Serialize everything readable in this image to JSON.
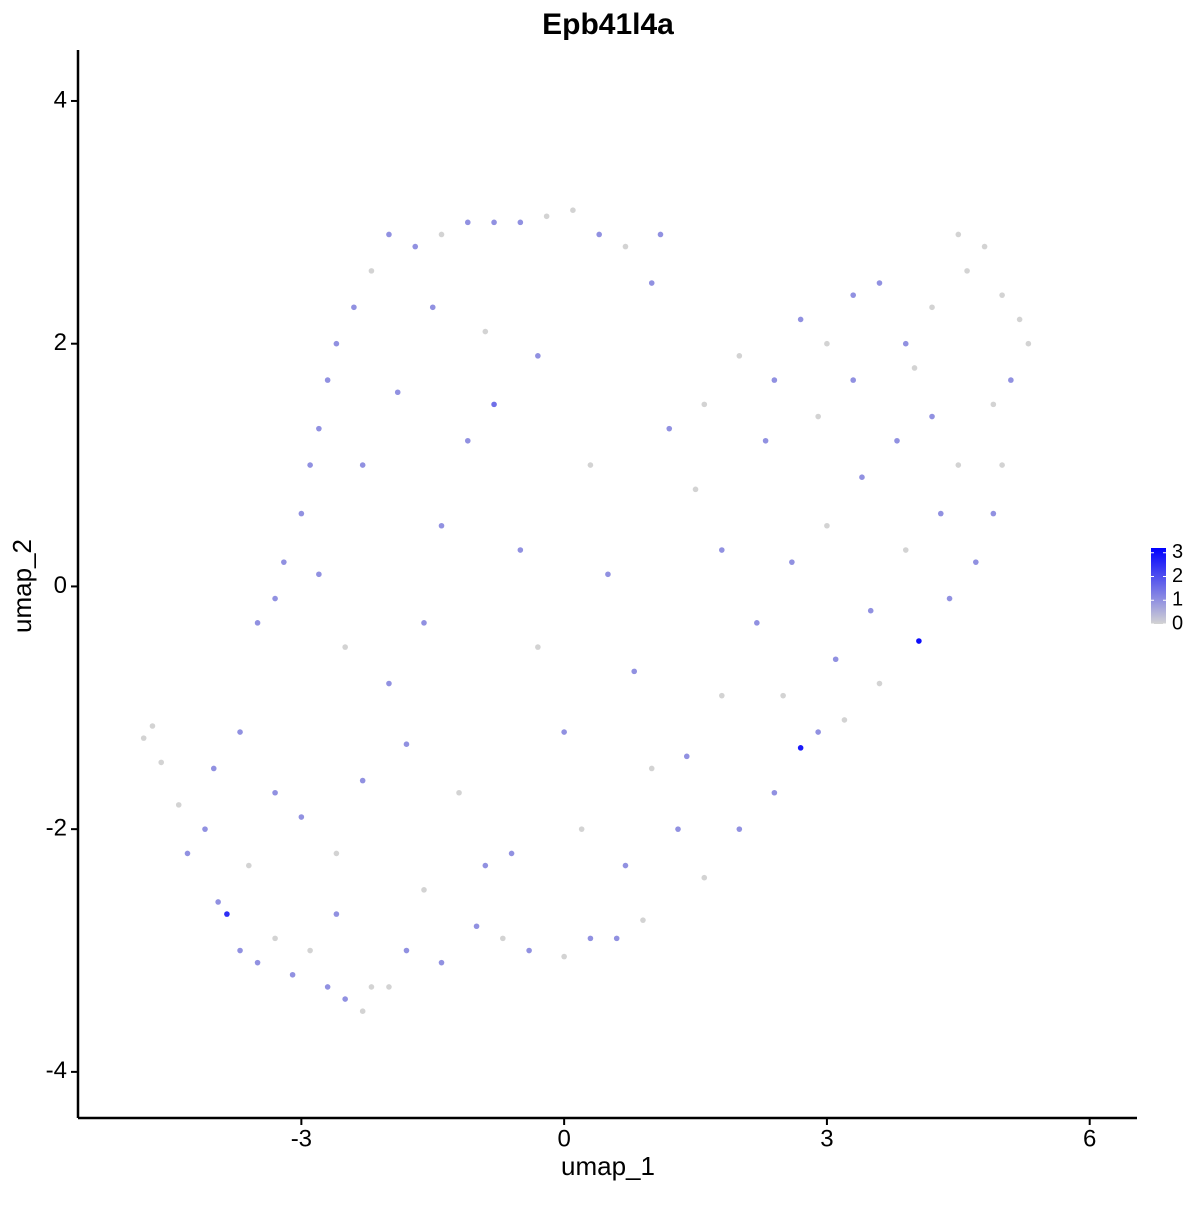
{
  "chart_data": {
    "type": "scatter",
    "title": "Epb41l4a",
    "xlabel": "umap_1",
    "ylabel": "umap_2",
    "x": [
      -4.8,
      -4.7,
      -4.6,
      -4.4,
      -4.3,
      -4.1,
      -3.95,
      -3.85,
      -3.7,
      -3.5,
      -3.3,
      -3.1,
      -2.9,
      -2.7,
      -2.5,
      -2.3,
      -2.2,
      -2.0,
      -1.8,
      -1.4,
      -1.0,
      -0.7,
      -0.4,
      0.0,
      0.3,
      0.6,
      0.9,
      -4.0,
      -3.7,
      -3.5,
      -3.3,
      -3.2,
      -3.0,
      -2.9,
      -2.8,
      -2.7,
      -2.6,
      -2.4,
      -2.2,
      -2.0,
      -1.7,
      -1.4,
      -1.1,
      -0.8,
      -0.5,
      -0.2,
      0.1,
      0.4,
      0.7,
      1.1,
      1.0,
      -3.0,
      -2.6,
      -2.3,
      -2.0,
      -1.6,
      -1.4,
      -1.1,
      -0.8,
      -0.5,
      -0.3,
      0.0,
      0.2,
      -0.6,
      -1.2,
      -1.8,
      -2.5,
      -2.8,
      -2.3,
      -1.9,
      -1.5,
      -0.9,
      -0.3,
      0.3,
      0.5,
      0.8,
      1.0,
      0.7,
      1.3,
      -3.6,
      -3.3,
      -2.6,
      -1.6,
      -0.9,
      1.2,
      1.6,
      2.0,
      2.4,
      2.7,
      3.0,
      3.3,
      3.6,
      3.9,
      4.2,
      4.5,
      4.6,
      4.8,
      5.0,
      5.2,
      5.3,
      5.1,
      4.9,
      5.0,
      4.9,
      4.7,
      4.4,
      4.05,
      3.6,
      3.2,
      2.9,
      2.7,
      2.4,
      2.0,
      1.6,
      1.4,
      1.8,
      2.2,
      2.6,
      3.0,
      3.4,
      3.8,
      4.2,
      4.5,
      4.3,
      3.9,
      3.5,
      3.1,
      2.5,
      1.8,
      1.5,
      2.3,
      2.9,
      3.3,
      4.0
    ],
    "y": [
      -1.25,
      -1.15,
      -1.45,
      -1.8,
      -2.2,
      -2.0,
      -2.6,
      -2.7,
      -3.0,
      -3.1,
      -2.9,
      -3.2,
      -3.0,
      -3.3,
      -3.4,
      -3.5,
      -3.3,
      -3.3,
      -3.0,
      -3.1,
      -2.8,
      -2.9,
      -3.0,
      -3.05,
      -2.9,
      -2.9,
      -2.75,
      -1.5,
      -1.2,
      -0.3,
      -0.1,
      0.2,
      0.6,
      1.0,
      1.3,
      1.7,
      2.0,
      2.3,
      2.6,
      2.9,
      2.8,
      2.9,
      3.0,
      3.0,
      3.0,
      3.05,
      3.1,
      2.9,
      2.8,
      2.9,
      2.5,
      -1.9,
      -2.2,
      -1.6,
      -0.8,
      -0.3,
      0.5,
      1.2,
      1.5,
      0.3,
      -0.5,
      -1.2,
      -2.0,
      -2.2,
      -1.7,
      -1.3,
      -0.5,
      0.1,
      1.0,
      1.6,
      2.3,
      2.1,
      1.9,
      1.0,
      0.1,
      -0.7,
      -1.5,
      -2.3,
      -2.0,
      -2.3,
      -1.7,
      -2.7,
      -2.5,
      -2.3,
      1.3,
      1.5,
      1.9,
      1.7,
      2.2,
      2.0,
      2.4,
      2.5,
      2.0,
      2.3,
      2.9,
      2.6,
      2.8,
      2.4,
      2.2,
      2.0,
      1.7,
      1.5,
      1.0,
      0.6,
      0.2,
      -0.1,
      -0.45,
      -0.8,
      -1.1,
      -1.2,
      -1.33,
      -1.7,
      -2.0,
      -2.4,
      -1.4,
      -0.9,
      -0.3,
      0.2,
      0.5,
      0.9,
      1.2,
      1.4,
      1.0,
      0.6,
      0.3,
      -0.2,
      -0.6,
      -0.9,
      0.3,
      0.8,
      1.2,
      1.4,
      1.7,
      1.8
    ],
    "values": [
      0,
      0,
      0,
      0,
      1,
      1,
      1,
      2.5,
      1,
      1,
      0,
      1,
      0,
      1,
      1,
      0,
      0,
      0,
      1,
      1,
      1,
      0,
      1,
      0,
      1,
      1,
      0,
      1,
      1,
      1,
      1,
      1,
      1,
      1,
      1,
      1,
      1,
      1,
      0,
      1,
      1,
      0,
      1,
      1,
      1,
      0,
      0,
      1,
      0,
      1,
      1,
      1,
      0,
      1,
      1,
      1,
      1,
      1,
      1.5,
      1,
      0,
      1,
      0,
      1,
      0,
      1,
      0,
      1,
      1,
      1,
      1,
      0,
      1,
      0,
      1,
      1,
      0,
      1,
      1,
      0,
      1,
      1,
      0,
      1,
      1,
      0,
      0,
      1,
      1,
      0,
      1,
      1,
      1,
      0,
      0,
      0,
      0,
      0,
      0,
      0,
      1,
      0,
      0,
      1,
      1,
      1,
      3,
      0,
      0,
      1,
      2.8,
      1,
      1,
      0,
      1,
      0,
      1,
      1,
      0,
      1,
      1,
      1,
      0,
      1,
      0,
      1,
      1,
      0,
      1,
      0,
      1,
      0,
      1,
      0
    ],
    "xlim": [
      -5.55,
      6.54
    ],
    "ylim": [
      -4.38,
      4.42
    ],
    "xticks": [
      -3,
      0,
      3,
      6
    ],
    "yticks": [
      -4,
      -2,
      0,
      2,
      4
    ],
    "color_low": "#d3d3d3",
    "color_high": "#0000ff",
    "clim": [
      0,
      3.2
    ],
    "cticks": [
      0,
      1,
      2,
      3
    ]
  }
}
